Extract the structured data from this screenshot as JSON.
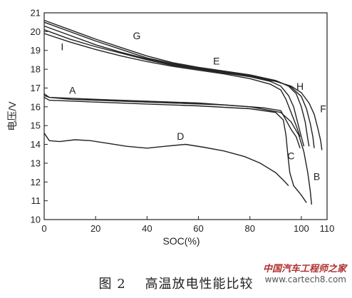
{
  "caption": "图 2    高温放电性能比较",
  "watermark": {
    "name": "中国汽车工程师之家",
    "url": "www.cartech8.com"
  },
  "chart_data": {
    "type": "line",
    "xlabel": "SOC(%)",
    "ylabel": "电压/V",
    "xlim": [
      0,
      110
    ],
    "ylim": [
      10,
      21
    ],
    "xticks": [
      0,
      20,
      40,
      60,
      80,
      100,
      110
    ],
    "yticks": [
      10,
      11,
      12,
      13,
      14,
      15,
      16,
      17,
      18,
      19,
      20,
      21
    ],
    "grid": false,
    "series": [
      {
        "name": "A",
        "points": [
          [
            0,
            16.6
          ],
          [
            2,
            16.5
          ],
          [
            10,
            16.4
          ],
          [
            30,
            16.3
          ],
          [
            50,
            16.2
          ],
          [
            70,
            16.1
          ],
          [
            85,
            15.95
          ],
          [
            92,
            15.8
          ],
          [
            94,
            15.3
          ],
          [
            96,
            14.8
          ],
          [
            98,
            14.4
          ],
          [
            99.5,
            13.8
          ]
        ]
      },
      {
        "name": "B",
        "points": [
          [
            0,
            16.7
          ],
          [
            2,
            16.5
          ],
          [
            20,
            16.4
          ],
          [
            40,
            16.3
          ],
          [
            60,
            16.2
          ],
          [
            80,
            16.0
          ],
          [
            92,
            15.7
          ],
          [
            96,
            15.2
          ],
          [
            99,
            14.5
          ],
          [
            101,
            13.6
          ],
          [
            102.5,
            12.5
          ],
          [
            103.5,
            11.5
          ],
          [
            104,
            10.8
          ]
        ]
      },
      {
        "name": "C",
        "points": [
          [
            0,
            16.5
          ],
          [
            2,
            16.35
          ],
          [
            20,
            16.25
          ],
          [
            40,
            16.15
          ],
          [
            60,
            16.05
          ],
          [
            80,
            15.9
          ],
          [
            90,
            15.7
          ],
          [
            93,
            15.3
          ],
          [
            94,
            14.5
          ],
          [
            94.7,
            13.5
          ],
          [
            95.5,
            12.5
          ],
          [
            97,
            11.8
          ],
          [
            100,
            11.3
          ],
          [
            102,
            10.9
          ]
        ]
      },
      {
        "name": "D",
        "points": [
          [
            0,
            14.6
          ],
          [
            2,
            14.2
          ],
          [
            6,
            14.15
          ],
          [
            12,
            14.25
          ],
          [
            18,
            14.2
          ],
          [
            25,
            14.05
          ],
          [
            32,
            13.9
          ],
          [
            40,
            13.8
          ],
          [
            47,
            13.9
          ],
          [
            55,
            14.0
          ],
          [
            62,
            13.85
          ],
          [
            70,
            13.65
          ],
          [
            78,
            13.35
          ],
          [
            84,
            13.0
          ],
          [
            90,
            12.5
          ],
          [
            93,
            12.1
          ],
          [
            95,
            11.8
          ]
        ]
      },
      {
        "name": "E",
        "points": [
          [
            0,
            20.3
          ],
          [
            10,
            19.8
          ],
          [
            20,
            19.3
          ],
          [
            30,
            18.9
          ],
          [
            40,
            18.55
          ],
          [
            50,
            18.25
          ],
          [
            60,
            18.05
          ],
          [
            70,
            17.85
          ],
          [
            80,
            17.6
          ],
          [
            88,
            17.35
          ],
          [
            92,
            17.1
          ],
          [
            95,
            16.6
          ],
          [
            97,
            16.0
          ],
          [
            98.5,
            15.2
          ],
          [
            100,
            14.4
          ],
          [
            101,
            13.9
          ]
        ]
      },
      {
        "name": "F",
        "points": [
          [
            0,
            20.1
          ],
          [
            10,
            19.6
          ],
          [
            20,
            19.2
          ],
          [
            30,
            18.85
          ],
          [
            40,
            18.5
          ],
          [
            50,
            18.2
          ],
          [
            60,
            18.0
          ],
          [
            70,
            17.8
          ],
          [
            80,
            17.6
          ],
          [
            90,
            17.35
          ],
          [
            96,
            17.1
          ],
          [
            100,
            16.75
          ],
          [
            103,
            16.2
          ],
          [
            105,
            15.6
          ],
          [
            106.5,
            14.8
          ],
          [
            107.5,
            14.2
          ],
          [
            108,
            13.7
          ]
        ]
      },
      {
        "name": "G",
        "points": [
          [
            0,
            20.6
          ],
          [
            10,
            20.1
          ],
          [
            20,
            19.6
          ],
          [
            30,
            19.15
          ],
          [
            40,
            18.7
          ],
          [
            50,
            18.35
          ],
          [
            60,
            18.1
          ],
          [
            70,
            17.9
          ],
          [
            80,
            17.7
          ],
          [
            90,
            17.4
          ],
          [
            95,
            17.1
          ],
          [
            98,
            16.7
          ],
          [
            100,
            16.0
          ],
          [
            101.5,
            15.2
          ],
          [
            102.5,
            14.3
          ],
          [
            103,
            13.9
          ]
        ]
      },
      {
        "name": "H",
        "points": [
          [
            0,
            20.5
          ],
          [
            10,
            20.0
          ],
          [
            20,
            19.5
          ],
          [
            30,
            19.05
          ],
          [
            40,
            18.6
          ],
          [
            50,
            18.3
          ],
          [
            60,
            18.05
          ],
          [
            70,
            17.85
          ],
          [
            80,
            17.65
          ],
          [
            90,
            17.4
          ],
          [
            96,
            17.05
          ],
          [
            100,
            16.55
          ],
          [
            102,
            15.9
          ],
          [
            103.5,
            15.1
          ],
          [
            104.5,
            14.4
          ],
          [
            105,
            13.8
          ]
        ]
      },
      {
        "name": "I",
        "points": [
          [
            0,
            19.9
          ],
          [
            10,
            19.45
          ],
          [
            20,
            19.05
          ],
          [
            30,
            18.7
          ],
          [
            40,
            18.4
          ],
          [
            50,
            18.15
          ],
          [
            60,
            17.95
          ],
          [
            70,
            17.75
          ],
          [
            80,
            17.5
          ],
          [
            88,
            17.2
          ],
          [
            92,
            16.9
          ],
          [
            94,
            16.4
          ],
          [
            96,
            15.7
          ],
          [
            98,
            15.0
          ],
          [
            99.5,
            14.4
          ]
        ]
      }
    ],
    "annotations": [
      {
        "text": "A",
        "x": 11,
        "y": 16.7
      },
      {
        "text": "B",
        "x": 106,
        "y": 12.1
      },
      {
        "text": "C",
        "x": 96,
        "y": 13.2
      },
      {
        "text": "D",
        "x": 53,
        "y": 14.25
      },
      {
        "text": "E",
        "x": 67,
        "y": 18.25
      },
      {
        "text": "F",
        "x": 108.5,
        "y": 15.7
      },
      {
        "text": "G",
        "x": 36,
        "y": 19.6
      },
      {
        "text": "H",
        "x": 99.5,
        "y": 16.9
      },
      {
        "text": "I",
        "x": 7,
        "y": 19.0
      }
    ]
  }
}
